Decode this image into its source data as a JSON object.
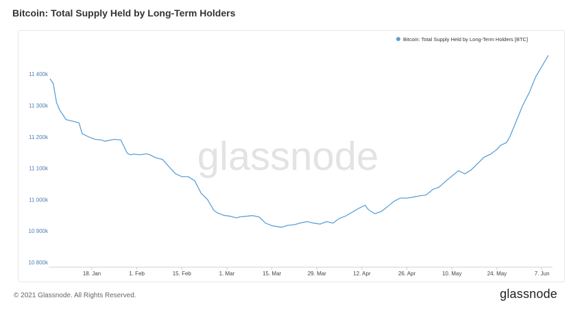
{
  "title": "Bitcoin: Total Supply Held by Long-Term Holders",
  "watermark": "glassnode",
  "footer": {
    "copyright": "© 2021 Glassnode. All Rights Reserved.",
    "logo": "glassnode"
  },
  "colors": {
    "line": "#5b9fd6",
    "axis_text": "#4d7bb5",
    "grid": "#f0f0f0",
    "watermark": "#e3e3e3"
  },
  "chart_data": {
    "type": "line",
    "title": "Bitcoin: Total Supply Held by Long-Term Holders",
    "legend_position": "top-right",
    "grid": false,
    "ylim": [
      10800,
      11420
    ],
    "y_ticks": [
      10800,
      10900,
      11000,
      11100,
      11200,
      11300,
      11400
    ],
    "y_tick_labels": [
      "10 800k",
      "10 900k",
      "11 000k",
      "11 100k",
      "11 200k",
      "11 300k",
      "11 400k"
    ],
    "x_ticks": [
      "2021-01-18",
      "2021-02-01",
      "2021-02-15",
      "2021-03-01",
      "2021-03-15",
      "2021-03-29",
      "2021-04-12",
      "2021-04-26",
      "2021-05-10",
      "2021-05-24",
      "2021-06-07"
    ],
    "x_tick_labels": [
      "18. Jan",
      "1. Feb",
      "15. Feb",
      "1. Mar",
      "15. Mar",
      "29. Mar",
      "12. Apr",
      "26. Apr",
      "10. May",
      "24. May",
      "7. Jun"
    ],
    "series": [
      {
        "name": "Bitcoin: Total Supply Held by Long-Term Holders [BTC]",
        "x": [
          "2021-01-05",
          "2021-01-06",
          "2021-01-07",
          "2021-01-08",
          "2021-01-09",
          "2021-01-10",
          "2021-01-12",
          "2021-01-14",
          "2021-01-15",
          "2021-01-17",
          "2021-01-19",
          "2021-01-21",
          "2021-01-22",
          "2021-01-24",
          "2021-01-25",
          "2021-01-27",
          "2021-01-29",
          "2021-01-30",
          "2021-01-31",
          "2021-02-02",
          "2021-02-04",
          "2021-02-05",
          "2021-02-07",
          "2021-02-09",
          "2021-02-11",
          "2021-02-13",
          "2021-02-15",
          "2021-02-17",
          "2021-02-19",
          "2021-02-21",
          "2021-02-23",
          "2021-02-25",
          "2021-02-26",
          "2021-02-28",
          "2021-03-02",
          "2021-03-04",
          "2021-03-05",
          "2021-03-07",
          "2021-03-09",
          "2021-03-11",
          "2021-03-13",
          "2021-03-15",
          "2021-03-16",
          "2021-03-18",
          "2021-03-20",
          "2021-03-22",
          "2021-03-24",
          "2021-03-26",
          "2021-03-28",
          "2021-03-30",
          "2021-04-01",
          "2021-04-03",
          "2021-04-05",
          "2021-04-07",
          "2021-04-09",
          "2021-04-11",
          "2021-04-13",
          "2021-04-14",
          "2021-04-16",
          "2021-04-18",
          "2021-04-20",
          "2021-04-22",
          "2021-04-24",
          "2021-04-26",
          "2021-04-28",
          "2021-04-30",
          "2021-05-02",
          "2021-05-04",
          "2021-05-06",
          "2021-05-08",
          "2021-05-10",
          "2021-05-12",
          "2021-05-14",
          "2021-05-16",
          "2021-05-18",
          "2021-05-20",
          "2021-05-22",
          "2021-05-24",
          "2021-05-25",
          "2021-05-27",
          "2021-05-28",
          "2021-05-30",
          "2021-06-01",
          "2021-06-03",
          "2021-06-05",
          "2021-06-07",
          "2021-06-09"
        ],
        "values": [
          11385,
          11370,
          11310,
          11285,
          11270,
          11255,
          11250,
          11245,
          11210,
          11200,
          11192,
          11190,
          11186,
          11190,
          11192,
          11190,
          11148,
          11143,
          11145,
          11143,
          11146,
          11143,
          11133,
          11128,
          11105,
          11083,
          11073,
          11073,
          11060,
          11020,
          11000,
          10965,
          10958,
          10950,
          10947,
          10942,
          10945,
          10947,
          10949,
          10945,
          10925,
          10917,
          10915,
          10912,
          10918,
          10920,
          10926,
          10930,
          10925,
          10922,
          10930,
          10925,
          10940,
          10948,
          10960,
          10972,
          10982,
          10968,
          10955,
          10962,
          10978,
          10995,
          11005,
          11005,
          11008,
          11012,
          11015,
          11032,
          11040,
          11058,
          11075,
          11092,
          11082,
          11095,
          11115,
          11135,
          11145,
          11160,
          11172,
          11182,
          11200,
          11250,
          11300,
          11340,
          11390,
          11425,
          11460
        ]
      }
    ]
  }
}
